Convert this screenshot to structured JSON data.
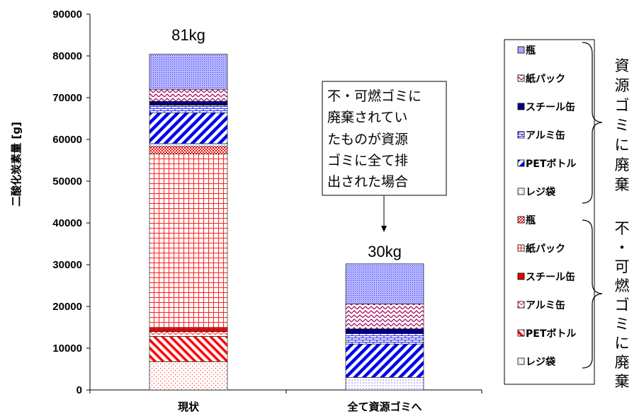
{
  "chart_data": {
    "type": "bar",
    "stacked": true,
    "categories": [
      "現状",
      "全て資源ゴミへ"
    ],
    "ylabel": "二酸化炭素量 [g]",
    "ylim": [
      0,
      90000
    ],
    "yticks": [
      0,
      10000,
      20000,
      30000,
      40000,
      50000,
      60000,
      70000,
      80000,
      90000
    ],
    "totals": [
      "81kg",
      "30kg"
    ],
    "series": [
      {
        "name": "レジ袋",
        "group": "不・可燃ゴミに廃棄",
        "color": "#ff6060",
        "pattern": "dots-red",
        "values": [
          6800,
          0
        ]
      },
      {
        "name": "PETボトル",
        "group": "不・可燃ゴミに廃棄",
        "color": "#ff0000",
        "pattern": "diag-red",
        "values": [
          6000,
          0
        ]
      },
      {
        "name": "アルミ缶",
        "group": "不・可燃ゴミに廃棄",
        "color": "#ff5050",
        "pattern": "zigzag-red",
        "values": [
          1200,
          0
        ]
      },
      {
        "name": "スチール缶",
        "group": "不・可燃ゴミに廃棄",
        "color": "#ee0000",
        "pattern": "solid-red",
        "values": [
          800,
          0
        ]
      },
      {
        "name": "紙パック",
        "group": "不・可燃ゴミに廃棄",
        "color": "#ff3030",
        "pattern": "grid-red",
        "values": [
          41700,
          0
        ]
      },
      {
        "name": "瓶",
        "group": "不・可燃ゴミに廃棄",
        "color": "#ff0000",
        "pattern": "check-red",
        "values": [
          1800,
          0
        ]
      },
      {
        "name": "レジ袋",
        "group": "資源ゴミに廃棄",
        "color": "#3030ff",
        "pattern": "dots-blue",
        "values": [
          700,
          3000
        ]
      },
      {
        "name": "PETボトル",
        "group": "資源ゴミに廃棄",
        "color": "#0000ff",
        "pattern": "diag-blue",
        "values": [
          7400,
          8000
        ]
      },
      {
        "name": "アルミ缶",
        "group": "資源ゴミに廃棄",
        "color": "#2020ff",
        "pattern": "brick-blue",
        "values": [
          1800,
          2600
        ]
      },
      {
        "name": "スチール缶",
        "group": "資源ゴミに廃棄",
        "color": "#000080",
        "pattern": "solid-navy",
        "values": [
          900,
          1000
        ]
      },
      {
        "name": "紙パック",
        "group": "資源ゴミに廃棄",
        "color": "#a00060",
        "pattern": "zigzag-purple",
        "values": [
          2900,
          6000
        ]
      },
      {
        "name": "瓶",
        "group": "資源ゴミに廃棄",
        "color": "#4040ff",
        "pattern": "dots-blue-dense",
        "values": [
          8400,
          9600
        ]
      }
    ],
    "legend": {
      "placement": "right",
      "items": [
        "瓶",
        "紙パック",
        "スチール缶",
        "アルミ缶",
        "PETボトル",
        "レジ袋",
        "瓶",
        "紙パック",
        "スチール缶",
        "アルミ缶",
        "PETボトル",
        "レジ袋"
      ],
      "groups": [
        "資源ゴミに廃棄",
        "不・可燃ゴミに廃棄"
      ]
    },
    "annotation": {
      "lines": [
        "不・可燃ゴミに",
        "廃棄されてい",
        "たものが資源",
        "ゴミに全て排",
        "出された場合"
      ]
    },
    "grid": false
  }
}
